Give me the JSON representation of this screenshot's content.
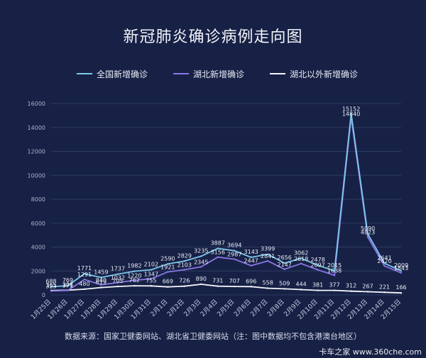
{
  "chart_data": {
    "type": "line",
    "title": "新冠肺炎确诊病例走向图",
    "categories": [
      "1月25日",
      "1月26日",
      "1月27日",
      "1月28日",
      "1月29日",
      "1月30日",
      "1月31日",
      "2月1日",
      "2月2日",
      "2月3日",
      "2月4日",
      "2月5日",
      "2月6日",
      "2月7日",
      "2月8日",
      "2月9日",
      "2月10日",
      "2月11日",
      "2月12日",
      "2月13日",
      "2月14日",
      "2月15日"
    ],
    "ylim": [
      0,
      16000
    ],
    "yticks": [
      0,
      2000,
      4000,
      6000,
      8000,
      10000,
      12000,
      14000,
      16000
    ],
    "grid": true,
    "legend_position": "top",
    "series": [
      {
        "name": "全国新增确诊",
        "color": "#7ec8ea",
        "values": [
          688,
          769,
          1771,
          1459,
          1737,
          1982,
          2102,
          2590,
          2829,
          3235,
          3887,
          3694,
          3143,
          3399,
          2656,
          3062,
          2478,
          2015,
          15152,
          5090,
          2641,
          2009
        ]
      },
      {
        "name": "湖北新增确诊",
        "color": "#8a76e6",
        "values": [
          323,
          371,
          1291,
          840,
          1032,
          1220,
          1347,
          1921,
          2103,
          2345,
          3156,
          2987,
          2447,
          2841,
          2147,
          2618,
          2097,
          1638,
          14840,
          4823,
          2420,
          1843
        ]
      },
      {
        "name": "湖北以外新增确诊",
        "color": "#f4f5fb",
        "values": [
          365,
          398,
          480,
          619,
          705,
          762,
          755,
          669,
          726,
          890,
          731,
          707,
          696,
          558,
          509,
          444,
          381,
          377,
          312,
          267,
          221,
          166
        ]
      }
    ]
  },
  "source_text": "数据来源：国家卫健委网站、湖北省卫健委网站（注：图中数据均不包含港澳台地区）",
  "watermark_text": "卡车之家 www.360che.com"
}
